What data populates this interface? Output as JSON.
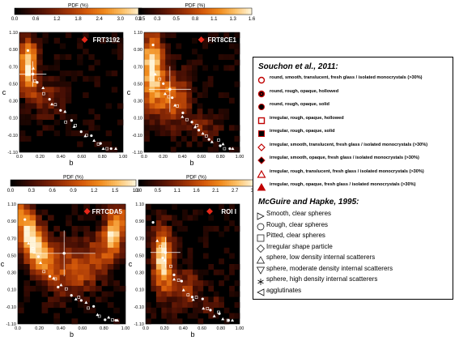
{
  "colors": {
    "ramp": [
      "#000000",
      "#3a0b03",
      "#6e1c05",
      "#a33606",
      "#d55a0a",
      "#f08a1c",
      "#fcc066",
      "#fff4d8"
    ],
    "contour": "#ffffff",
    "symbol": "#c00000"
  },
  "chart_data": [
    {
      "type": "heatmap",
      "name": "FRT3192",
      "colorbar_title": "PDF (%)",
      "colorbar_ticks": [
        "0.0",
        "0.6",
        "1.2",
        "1.8",
        "2.4",
        "3.0",
        "3.5"
      ],
      "colorbar_range": [
        0,
        3.5
      ],
      "xlabel": "b",
      "ylabel": "c",
      "x_ticks": [
        "0.0",
        "0.20",
        "0.40",
        "0.60",
        "0.80",
        "1.00"
      ],
      "y_ticks": [
        "1.10",
        "0.90",
        "0.70",
        "0.50",
        "0.30",
        "0.10",
        "-0.10",
        "-1.10"
      ],
      "xlim": [
        0,
        1
      ],
      "mean_point": {
        "b": 0.13,
        "c": 0.61,
        "b_err": 0.13,
        "c_err": 0.15
      }
    },
    {
      "type": "heatmap",
      "name": "FRT8CE1",
      "colorbar_title": "PDF (%)",
      "colorbar_ticks": [
        "0.0",
        "0.3",
        "0.5",
        "0.8",
        "1.1",
        "1.3",
        "1.6"
      ],
      "colorbar_range": [
        0,
        1.6
      ],
      "xlabel": "b",
      "ylabel": "c",
      "x_ticks": [
        "0.0",
        "0.20",
        "0.40",
        "0.60",
        "0.80",
        "1.00"
      ],
      "y_ticks": [
        "1.10",
        "0.90",
        "0.70",
        "0.50",
        "0.30",
        "0.10",
        "-0.10",
        "-1.10"
      ],
      "xlim": [
        0,
        1
      ],
      "mean_point": {
        "b": 0.27,
        "c": 0.43,
        "b_err": 0.22,
        "c_err": 0.27
      }
    },
    {
      "type": "heatmap",
      "name": "FRTCDA5",
      "colorbar_title": "PDF (%)",
      "colorbar_ticks": [
        "0.0",
        "0.3",
        "0.6",
        "0.9",
        "1.2",
        "1.5",
        "1.8"
      ],
      "colorbar_range": [
        0,
        1.8
      ],
      "xlabel": "b",
      "ylabel": "c",
      "x_ticks": [
        "0.0",
        "0.20",
        "0.40",
        "0.60",
        "0.80",
        "1.00"
      ],
      "y_ticks": [
        "1.10",
        "0.90",
        "0.70",
        "0.50",
        "0.30",
        "0.10",
        "-0.10",
        "-1.10"
      ],
      "xlim": [
        0,
        1
      ],
      "mean_point": {
        "b": 0.43,
        "c": 0.52,
        "b_err": 0.29,
        "c_err": 0.27
      }
    },
    {
      "type": "heatmap",
      "name": "ROI I",
      "colorbar_title": "PDF (%)",
      "colorbar_ticks": [
        "0.0",
        "0.5",
        "1.1",
        "1.6",
        "2.1",
        "2.7",
        "3.2"
      ],
      "colorbar_range": [
        0,
        3.2
      ],
      "xlabel": "b",
      "ylabel": "c",
      "x_ticks": [
        "0.0",
        "0.20",
        "0.40",
        "0.60",
        "0.80",
        "1.00"
      ],
      "y_ticks": [
        "1.10",
        "0.90",
        "0.70",
        "0.50",
        "0.30",
        "0.10",
        "-0.10",
        "-1.10"
      ],
      "xlim": [
        0,
        1
      ],
      "mean_point": {
        "b": 0.21,
        "c": 0.53,
        "b_err": 0.16,
        "c_err": 0.18
      }
    }
  ],
  "legend": {
    "souchon_title": "Souchon et al., 2011:",
    "souchon_items": [
      {
        "symbol": "circle-open",
        "label": "round, smooth, translucent, fresh glass / isolated monocrystals (>30%)"
      },
      {
        "symbol": "circle-dot",
        "label": "round, rough, opaque, hollowed"
      },
      {
        "symbol": "circle-filled",
        "label": "round, rough, opaque, solid"
      },
      {
        "symbol": "square-open",
        "label": "irregular, rough, opaque, hollowed"
      },
      {
        "symbol": "square-filled",
        "label": "irregular, rough, opaque, solid"
      },
      {
        "symbol": "diamond-open",
        "label": "irregular, smooth, translucent, fresh glass / isolated monocrystals (>30%)"
      },
      {
        "symbol": "diamond-filled",
        "label": "irregular, smooth, opaque, fresh glass / isolated monocrystals (>30%)"
      },
      {
        "symbol": "triangle-open",
        "label": "irregular, rough, translucent, fresh glass / isolated monocrystals (>30%)"
      },
      {
        "symbol": "triangle-filled",
        "label": "irregular, rough, opaque, fresh glass / isolated monocrystals (>30%)"
      }
    ],
    "mcguire_title": "McGuire and Hapke, 1995:",
    "mcguire_items": [
      {
        "symbol": "triangle-right",
        "label": "Smooth, clear spheres"
      },
      {
        "symbol": "circle-outline",
        "label": "Rough, clear spheres"
      },
      {
        "symbol": "square-outline",
        "label": "Pitted, clear spheres"
      },
      {
        "symbol": "diamond-outline",
        "label": "Irregular shape particle"
      },
      {
        "symbol": "triangle-up",
        "label": "sphere, low density internal scatterers"
      },
      {
        "symbol": "triangle-down",
        "label": "sphere, moderate density internal scatterers"
      },
      {
        "symbol": "asterisk",
        "label": "sphere, high density internal scatterers"
      },
      {
        "symbol": "triangle-left",
        "label": "agglutinates"
      }
    ]
  }
}
